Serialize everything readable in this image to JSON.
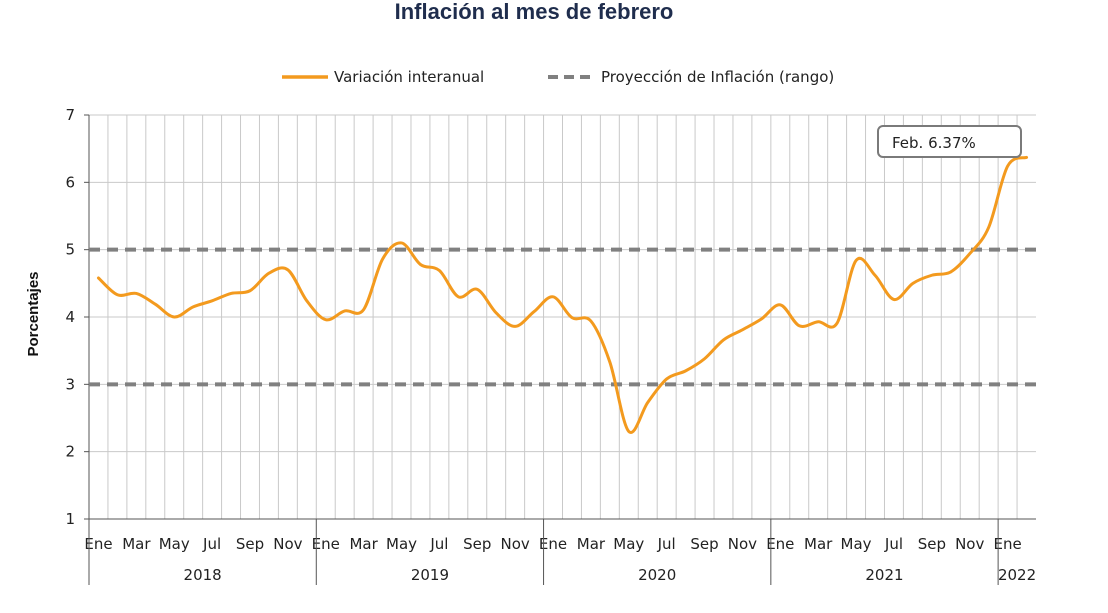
{
  "chart_data": {
    "type": "line",
    "title": "Inflación al mes de febrero",
    "ylabel": "Porcentajes",
    "ylim": [
      1,
      7
    ],
    "yticks": [
      1,
      2,
      3,
      4,
      5,
      6,
      7
    ],
    "grid": true,
    "legend_position": "top",
    "month_ticks": [
      "Ene",
      "Mar",
      "May",
      "Jul",
      "Sep",
      "Nov",
      "Ene",
      "Mar",
      "May",
      "Jul",
      "Sep",
      "Nov",
      "Ene",
      "Mar",
      "May",
      "Jul",
      "Sep",
      "Nov",
      "Ene",
      "Mar",
      "May",
      "Jul",
      "Sep",
      "Nov",
      "Ene"
    ],
    "years": [
      "2018",
      "2019",
      "2020",
      "2021",
      "2022"
    ],
    "series": [
      {
        "name": "Variación interanual",
        "color": "#f39a1e",
        "style": "solid",
        "values": [
          4.58,
          4.33,
          4.35,
          4.19,
          4.0,
          4.15,
          4.24,
          4.35,
          4.39,
          4.65,
          4.7,
          4.24,
          3.96,
          4.09,
          4.11,
          4.86,
          5.1,
          4.78,
          4.69,
          4.3,
          4.41,
          4.06,
          3.86,
          4.08,
          4.3,
          3.99,
          3.94,
          3.33,
          2.3,
          2.73,
          3.08,
          3.2,
          3.38,
          3.66,
          3.81,
          3.97,
          4.18,
          3.87,
          3.93,
          3.91,
          4.84,
          4.62,
          4.26,
          4.5,
          4.62,
          4.67,
          4.94,
          5.33,
          6.24,
          6.37
        ]
      },
      {
        "name": "Proyección de Inflación (rango)",
        "color": "#808080",
        "style": "dashed",
        "lines": [
          3,
          5
        ]
      }
    ],
    "annotations": [
      {
        "text": "Feb. 6.37%",
        "series": 0,
        "point": "last"
      }
    ]
  }
}
